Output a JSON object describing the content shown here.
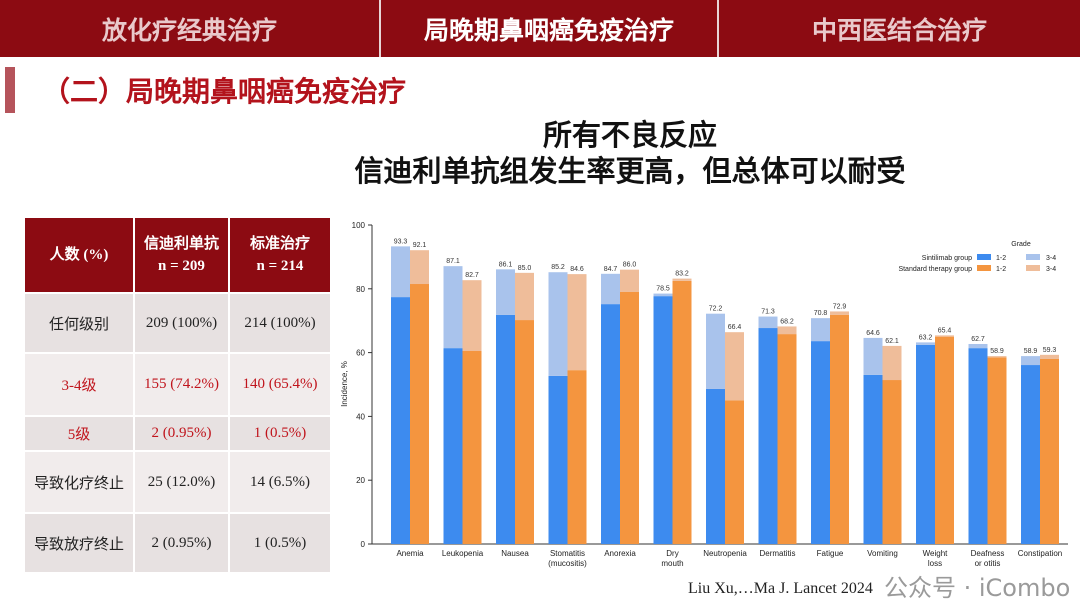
{
  "nav": {
    "tabs": [
      "放化疗经典治疗",
      "局晚期鼻咽癌免疫治疗",
      "中西医结合治疗"
    ],
    "active": 1
  },
  "section_title": "（二）局晚期鼻咽癌免疫治疗",
  "headline": [
    "所有不良反应",
    "信迪利单抗组发生率更高，但总体可以耐受"
  ],
  "table": {
    "headers": [
      "人数 (%)",
      "信迪利单抗",
      "n = 209",
      "标准治疗",
      "n = 214"
    ],
    "rows": [
      {
        "label": "任何级别",
        "a": "209 (100%)",
        "b": "214 (100%)",
        "red": false
      },
      {
        "label": "3-4级",
        "a": "155 (74.2%)",
        "b": "140 (65.4%)",
        "red": true
      },
      {
        "label": "5级",
        "a": "2 (0.95%)",
        "b": "1 (0.5%)",
        "red": true
      },
      {
        "label": "导致化疗终止",
        "a": "25 (12.0%)",
        "b": "14 (6.5%)",
        "red": false
      },
      {
        "label": "导致放疗终止",
        "a": "2 (0.95%)",
        "b": "1 (0.5%)",
        "red": false
      }
    ]
  },
  "chart_data": {
    "type": "bar",
    "stacked": true,
    "ylabel": "Incidence, %",
    "ylim": [
      0,
      100
    ],
    "yticks": [
      0,
      20,
      40,
      60,
      80,
      100
    ],
    "categories": [
      "Anemia",
      "Leukopenia",
      "Nausea",
      "Stomatitis\n(mucositis)",
      "Anorexia",
      "Dry\nmouth",
      "Neutropenia",
      "Dermatitis",
      "Fatigue",
      "Vomiting",
      "Weight\nloss",
      "Deafness\nor otitis",
      "Constipation"
    ],
    "legend": {
      "title": "Grade",
      "placement": "top-right",
      "groups": [
        "Sintilimab group",
        "Standard therapy group"
      ],
      "grades": [
        "1-2",
        "3-4"
      ]
    },
    "series": [
      {
        "name": "Sintilimab group",
        "total": [
          93.3,
          87.1,
          86.1,
          85.2,
          84.7,
          78.5,
          72.2,
          71.3,
          70.8,
          64.6,
          63.2,
          62.7,
          58.9
        ],
        "grade_1_2": [
          77.4,
          61.4,
          71.8,
          52.7,
          75.2,
          77.7,
          48.6,
          67.7,
          63.6,
          53.0,
          62.4,
          61.4,
          56.1
        ],
        "colors": {
          "1-2": "#3d8bef",
          "3-4": "#a9c3ec"
        }
      },
      {
        "name": "Standard therapy group",
        "total": [
          92.1,
          82.7,
          85.0,
          84.6,
          86.0,
          83.2,
          66.4,
          68.2,
          72.9,
          62.1,
          65.4,
          58.9,
          59.3
        ],
        "grade_1_2": [
          81.5,
          60.5,
          70.2,
          54.5,
          79.0,
          82.5,
          45.0,
          65.8,
          71.8,
          51.4,
          65.0,
          58.5,
          58.0
        ],
        "colors": {
          "1-2": "#f4953f",
          "3-4": "#efbd9a"
        }
      }
    ]
  },
  "citation": "Liu Xu,…Ma J. Lancet 2024",
  "watermark": "公众号 · iCombo"
}
